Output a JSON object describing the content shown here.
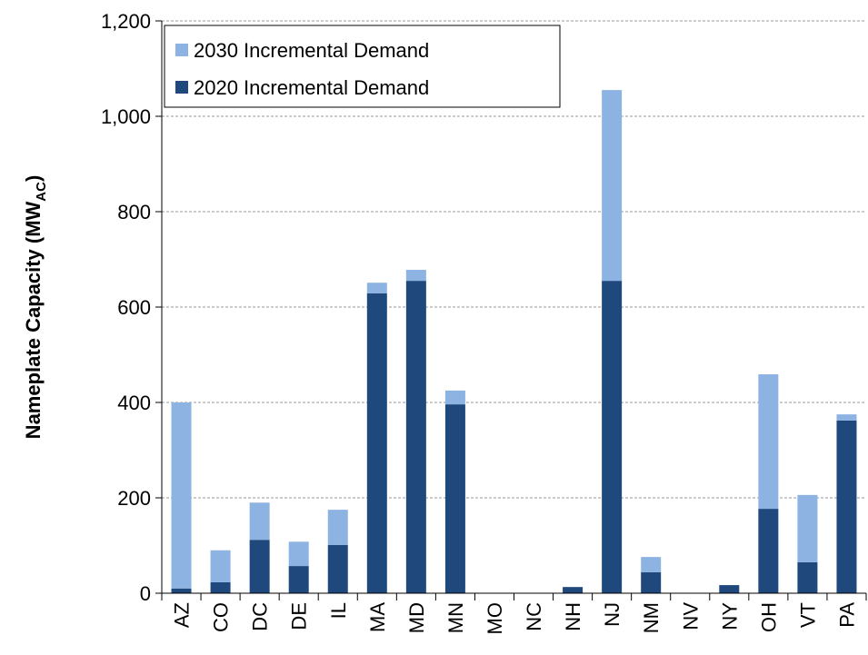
{
  "chart_data": {
    "type": "stacked_bar",
    "y_label": "Nameplate Capacity (MW",
    "y_label_subscript": "AC",
    "y_label_end": ")",
    "categories": [
      "AZ",
      "CO",
      "DC",
      "DE",
      "IL",
      "MA",
      "MD",
      "MN",
      "MO",
      "NC",
      "NH",
      "NJ",
      "NM",
      "NV",
      "NY",
      "OH",
      "VT",
      "PA"
    ],
    "series": [
      {
        "name": "2020 Incremental Demand",
        "color": "#1f497d",
        "values": [
          10,
          23,
          112,
          57,
          101,
          629,
          655,
          396,
          0,
          0,
          13,
          655,
          44,
          0,
          17,
          177,
          65,
          362
        ]
      },
      {
        "name": "2030 Incremental Demand",
        "color": "#8db3e2",
        "values": [
          390,
          67,
          78,
          51,
          74,
          22,
          23,
          29,
          0,
          0,
          0,
          400,
          32,
          0,
          0,
          282,
          141,
          13
        ]
      }
    ],
    "ylim": [
      0,
      1200
    ],
    "yticks": [
      0,
      200,
      400,
      600,
      800,
      {
        "value": 1000,
        "label": "1,000"
      },
      {
        "value": 1200,
        "label": "1,200"
      }
    ],
    "grid": true,
    "legend": "upper left"
  }
}
